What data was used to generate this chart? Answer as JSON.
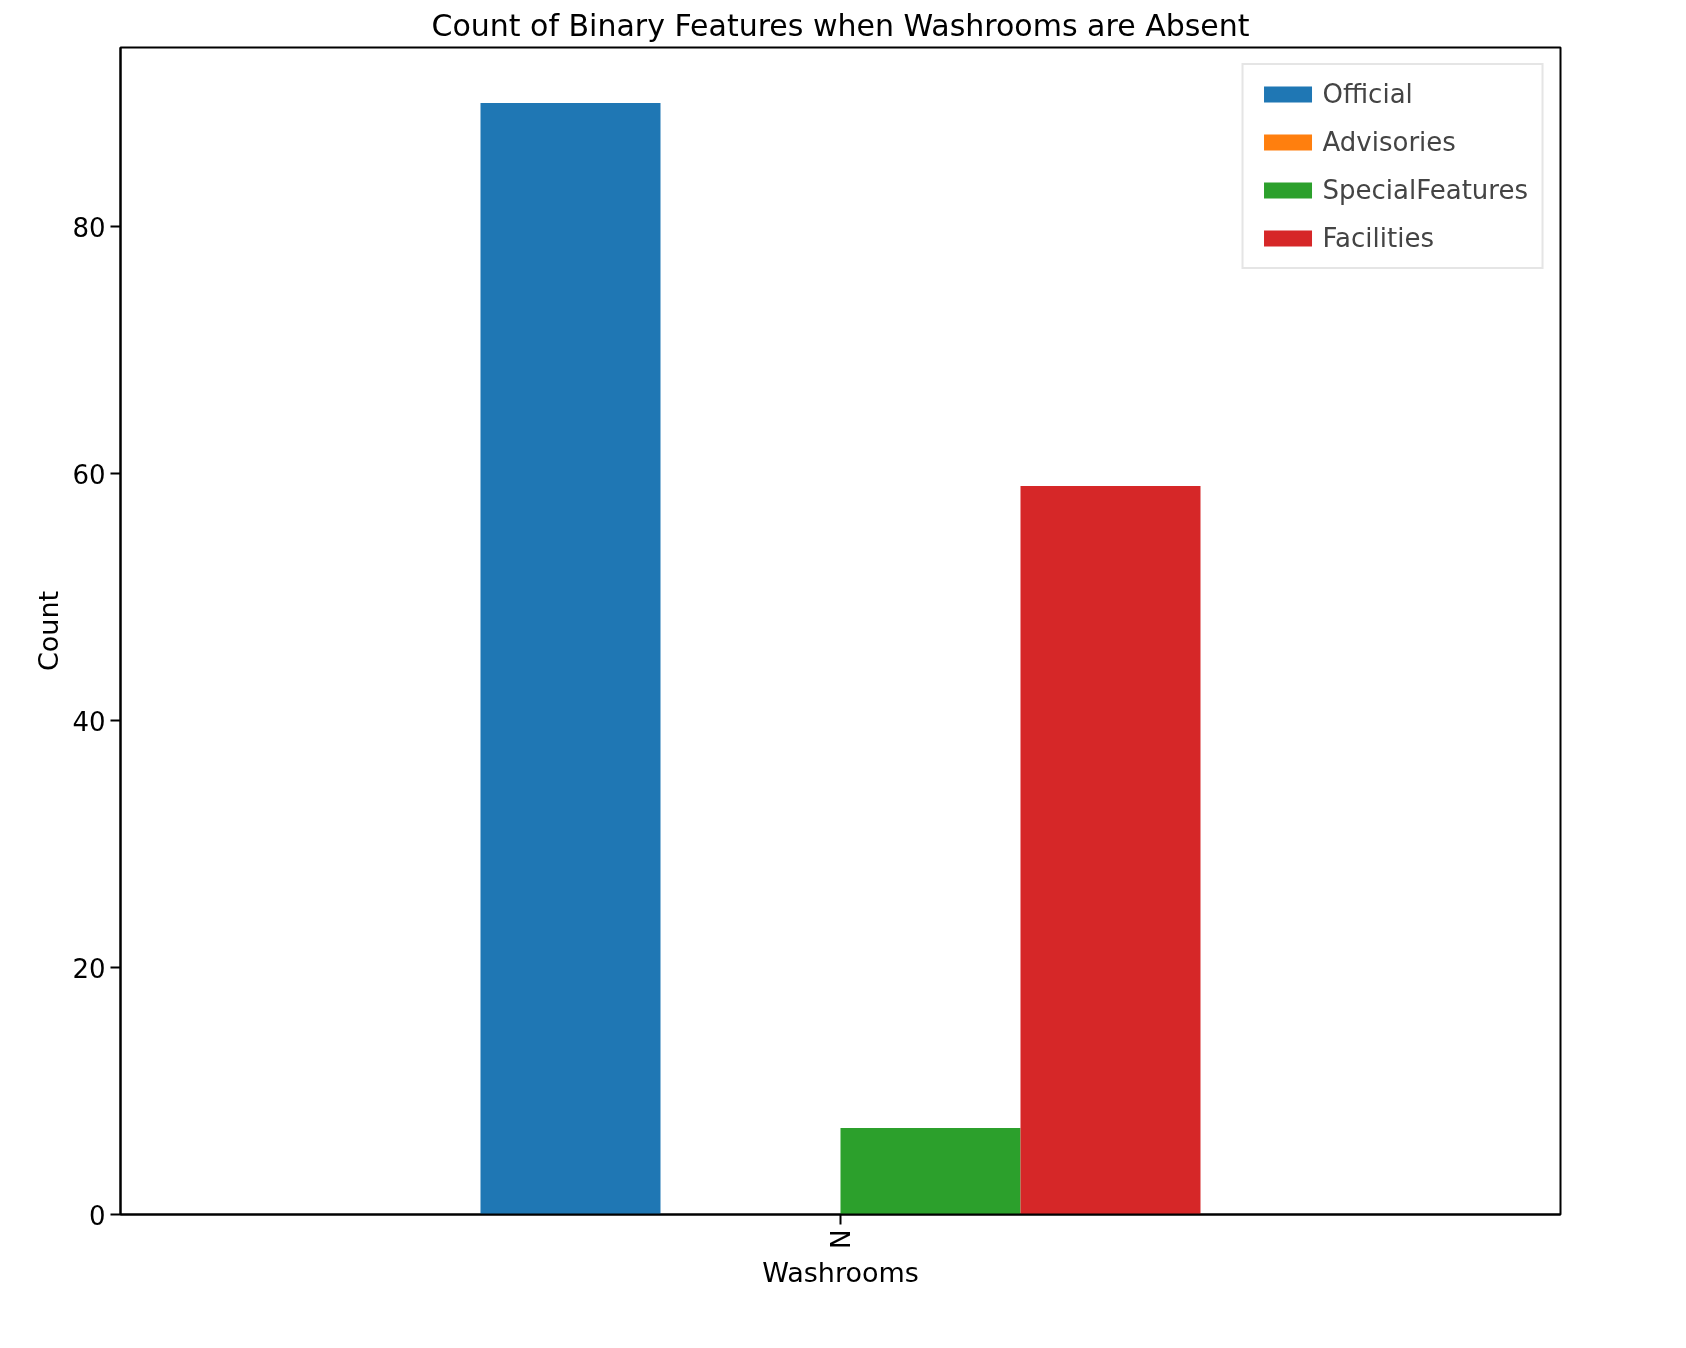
{
  "chart_data": {
    "type": "bar",
    "title": "Count of Binary Features when Washrooms are Absent",
    "xlabel": "Washrooms",
    "ylabel": "Count",
    "categories": [
      "N"
    ],
    "series": [
      {
        "name": "Official",
        "color": "#1f77b4",
        "values": [
          90
        ]
      },
      {
        "name": "Advisories",
        "color": "#ff7f0e",
        "values": [
          0
        ]
      },
      {
        "name": "SpecialFeatures",
        "color": "#2ca02c",
        "values": [
          7
        ]
      },
      {
        "name": "Facilities",
        "color": "#d62728",
        "values": [
          59
        ]
      }
    ],
    "ylim": [
      0,
      94.5
    ],
    "yticks": [
      0,
      20,
      40,
      60,
      80
    ],
    "grid": false,
    "legend": "top right"
  }
}
